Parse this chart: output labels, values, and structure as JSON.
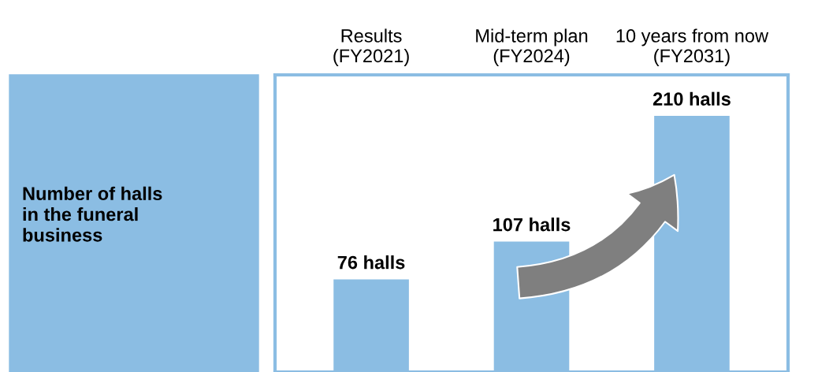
{
  "chart_data": {
    "type": "bar",
    "annotations": [
      "Number of halls\nin the funeral\nbusiness"
    ],
    "categories": [
      "Results\n(FY2021)",
      "Mid-term plan\n(FY2024)",
      "10 years from now\n(FY2031)"
    ],
    "values": [
      76,
      107,
      210
    ],
    "color": "#8bbde3",
    "value_labels": [
      "76 halls",
      "107 halls",
      "210 halls"
    ],
    "grid": false,
    "legend": false
  }
}
